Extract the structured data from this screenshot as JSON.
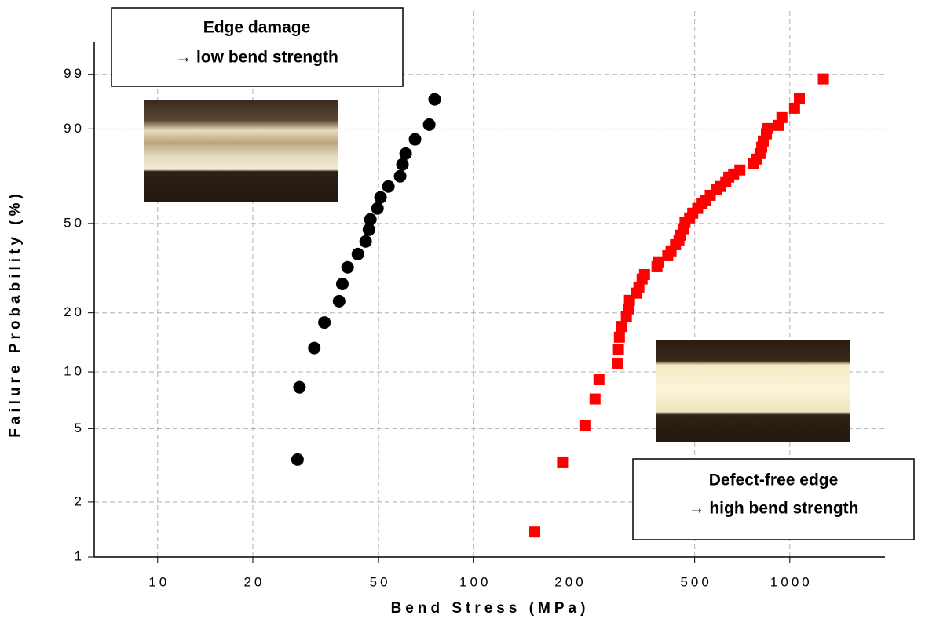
{
  "chart_data": {
    "type": "scatter",
    "xlabel": "Bend Stress (MPa)",
    "ylabel": "Failure Probability (%)",
    "xscale": "log",
    "yscale": "weibull",
    "grid": true,
    "xlim": [
      6.3,
      2000
    ],
    "xticks": [
      10,
      20,
      50,
      100,
      200,
      500,
      1000
    ],
    "ylim": [
      1,
      99.9
    ],
    "yticks": [
      1,
      2,
      5,
      10,
      20,
      50,
      90,
      99
    ],
    "annotations": [
      {
        "lines": [
          "Edge damage",
          "→ low bend strength"
        ]
      },
      {
        "lines": [
          "Defect-free edge",
          "→ high bend strength"
        ]
      }
    ],
    "series": [
      {
        "color": "#000000",
        "marker": "circle",
        "x": [
          27.7,
          28.1,
          31.3,
          33.7,
          37.5,
          38.4,
          39.9,
          43.0,
          45.5,
          46.6,
          47.1,
          49.6,
          50.7,
          53.7,
          58.5,
          59.5,
          60.9,
          65.2,
          72.3,
          75.2
        ],
        "values": [
          3.4,
          8.3,
          13.3,
          17.9,
          22.8,
          27.5,
          32.8,
          37.5,
          42.4,
          47.3,
          51.8,
          56.8,
          61.9,
          67.0,
          71.7,
          76.9,
          81.4,
          86.7,
          91.2,
          96.5
        ]
      },
      {
        "color": "#ff0000",
        "marker": "square",
        "x": [
          156,
          191,
          226,
          242,
          249,
          285,
          287,
          289,
          294,
          304,
          309,
          311,
          327,
          333,
          341,
          347,
          380,
          384,
          411,
          421,
          435,
          446,
          450,
          460,
          466,
          482,
          493,
          511,
          528,
          541,
          560,
          585,
          605,
          627,
          641,
          664,
          695,
          769,
          787,
          805,
          815,
          824,
          843,
          853,
          923,
          944,
          1035,
          1072,
          1277
        ],
        "values": [
          1.37,
          3.3,
          5.2,
          7.2,
          9.1,
          11.1,
          13.1,
          15.1,
          17.1,
          19.1,
          20.9,
          23.0,
          24.9,
          26.6,
          29.0,
          30.4,
          33.0,
          34.7,
          36.9,
          38.7,
          41.1,
          43.0,
          45.0,
          47.7,
          50.4,
          52.5,
          54.6,
          56.8,
          58.9,
          60.4,
          62.9,
          65.5,
          67.0,
          69.2,
          71.3,
          72.7,
          74.5,
          77.2,
          79.2,
          81.4,
          83.9,
          86.1,
          88.5,
          90.1,
          91.0,
          93.0,
          95.0,
          96.6,
          98.7
        ]
      }
    ]
  }
}
